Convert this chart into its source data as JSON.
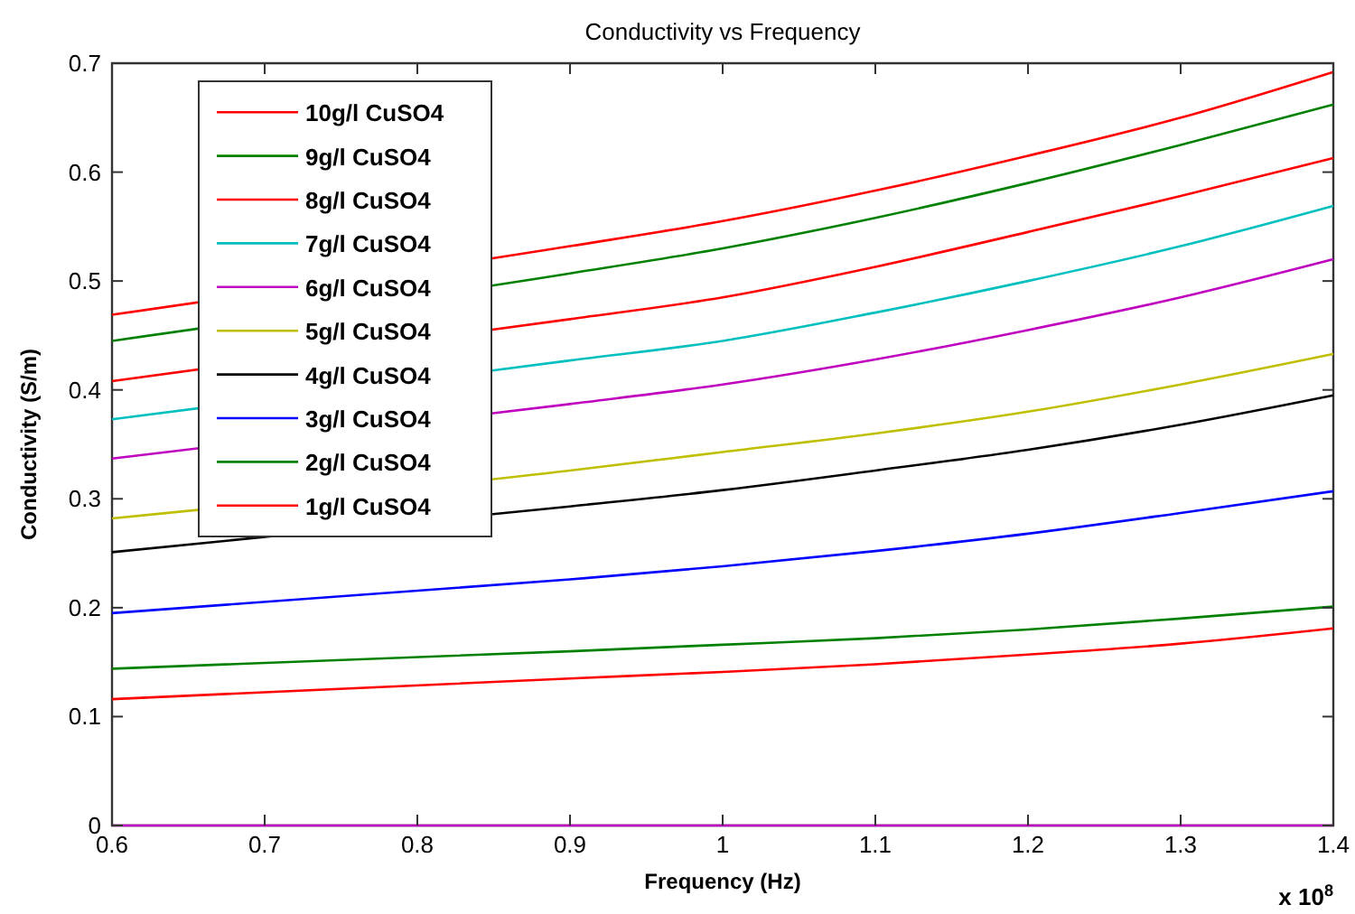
{
  "chart_data": {
    "type": "line",
    "title": "Conductivity vs Frequency",
    "xlabel": "Frequency (Hz)",
    "ylabel": "Conductivity (S/m)",
    "annotations": [
      "x 10$^{8}$"
    ],
    "x": [
      0.6,
      0.9,
      1.0,
      1.1,
      1.2,
      1.3,
      1.4
    ],
    "xlim": [
      0.6,
      1.4
    ],
    "xticks": [
      0.6,
      0.7,
      0.8,
      0.9,
      1,
      1.1,
      1.2,
      1.3,
      1.4
    ],
    "ylim": [
      0,
      0.7
    ],
    "yticks": [
      0,
      0.1,
      0.2,
      0.3,
      0.4,
      0.5,
      0.6,
      0.7
    ],
    "grid": false,
    "legend": "top left",
    "line_style": "solid",
    "marker": "none",
    "series": [
      {
        "name": "10g/l CuSO4",
        "color": "#ff0000",
        "values": [
          0.469,
          0.532,
          0.555,
          0.583,
          0.615,
          0.65,
          0.692
        ]
      },
      {
        "name": "9g/l CuSO4",
        "color": "#008000",
        "values": [
          0.445,
          0.507,
          0.53,
          0.558,
          0.59,
          0.625,
          0.662
        ]
      },
      {
        "name": "8g/l CuSO4",
        "color": "#ff0000",
        "values": [
          0.408,
          0.465,
          0.485,
          0.513,
          0.545,
          0.578,
          0.613
        ]
      },
      {
        "name": "7g/l CuSO4",
        "color": "#00bfbf",
        "values": [
          0.373,
          0.427,
          0.445,
          0.471,
          0.5,
          0.532,
          0.569
        ]
      },
      {
        "name": "6g/l CuSO4",
        "color": "#bf00bf",
        "values": [
          0.337,
          0.387,
          0.405,
          0.428,
          0.455,
          0.485,
          0.52
        ]
      },
      {
        "name": "5g/l CuSO4",
        "color": "#bfbf00",
        "values": [
          0.282,
          0.326,
          0.343,
          0.36,
          0.38,
          0.405,
          0.433
        ]
      },
      {
        "name": "4g/l CuSO4",
        "color": "#000000",
        "values": [
          0.251,
          0.293,
          0.308,
          0.326,
          0.345,
          0.368,
          0.395
        ]
      },
      {
        "name": "3g/l CuSO4",
        "color": "#0000ff",
        "values": [
          0.195,
          0.226,
          0.238,
          0.252,
          0.268,
          0.287,
          0.307
        ]
      },
      {
        "name": "2g/l CuSO4",
        "color": "#008000",
        "values": [
          0.144,
          0.16,
          0.166,
          0.172,
          0.18,
          0.19,
          0.201
        ]
      },
      {
        "name": "1g/l CuSO4",
        "color": "#ff0000",
        "values": [
          0.116,
          0.135,
          0.141,
          0.148,
          0.157,
          0.167,
          0.181
        ]
      },
      {
        "color": "#bf00bf",
        "values": [
          0,
          0,
          0,
          0,
          0,
          0,
          0
        ]
      }
    ]
  }
}
